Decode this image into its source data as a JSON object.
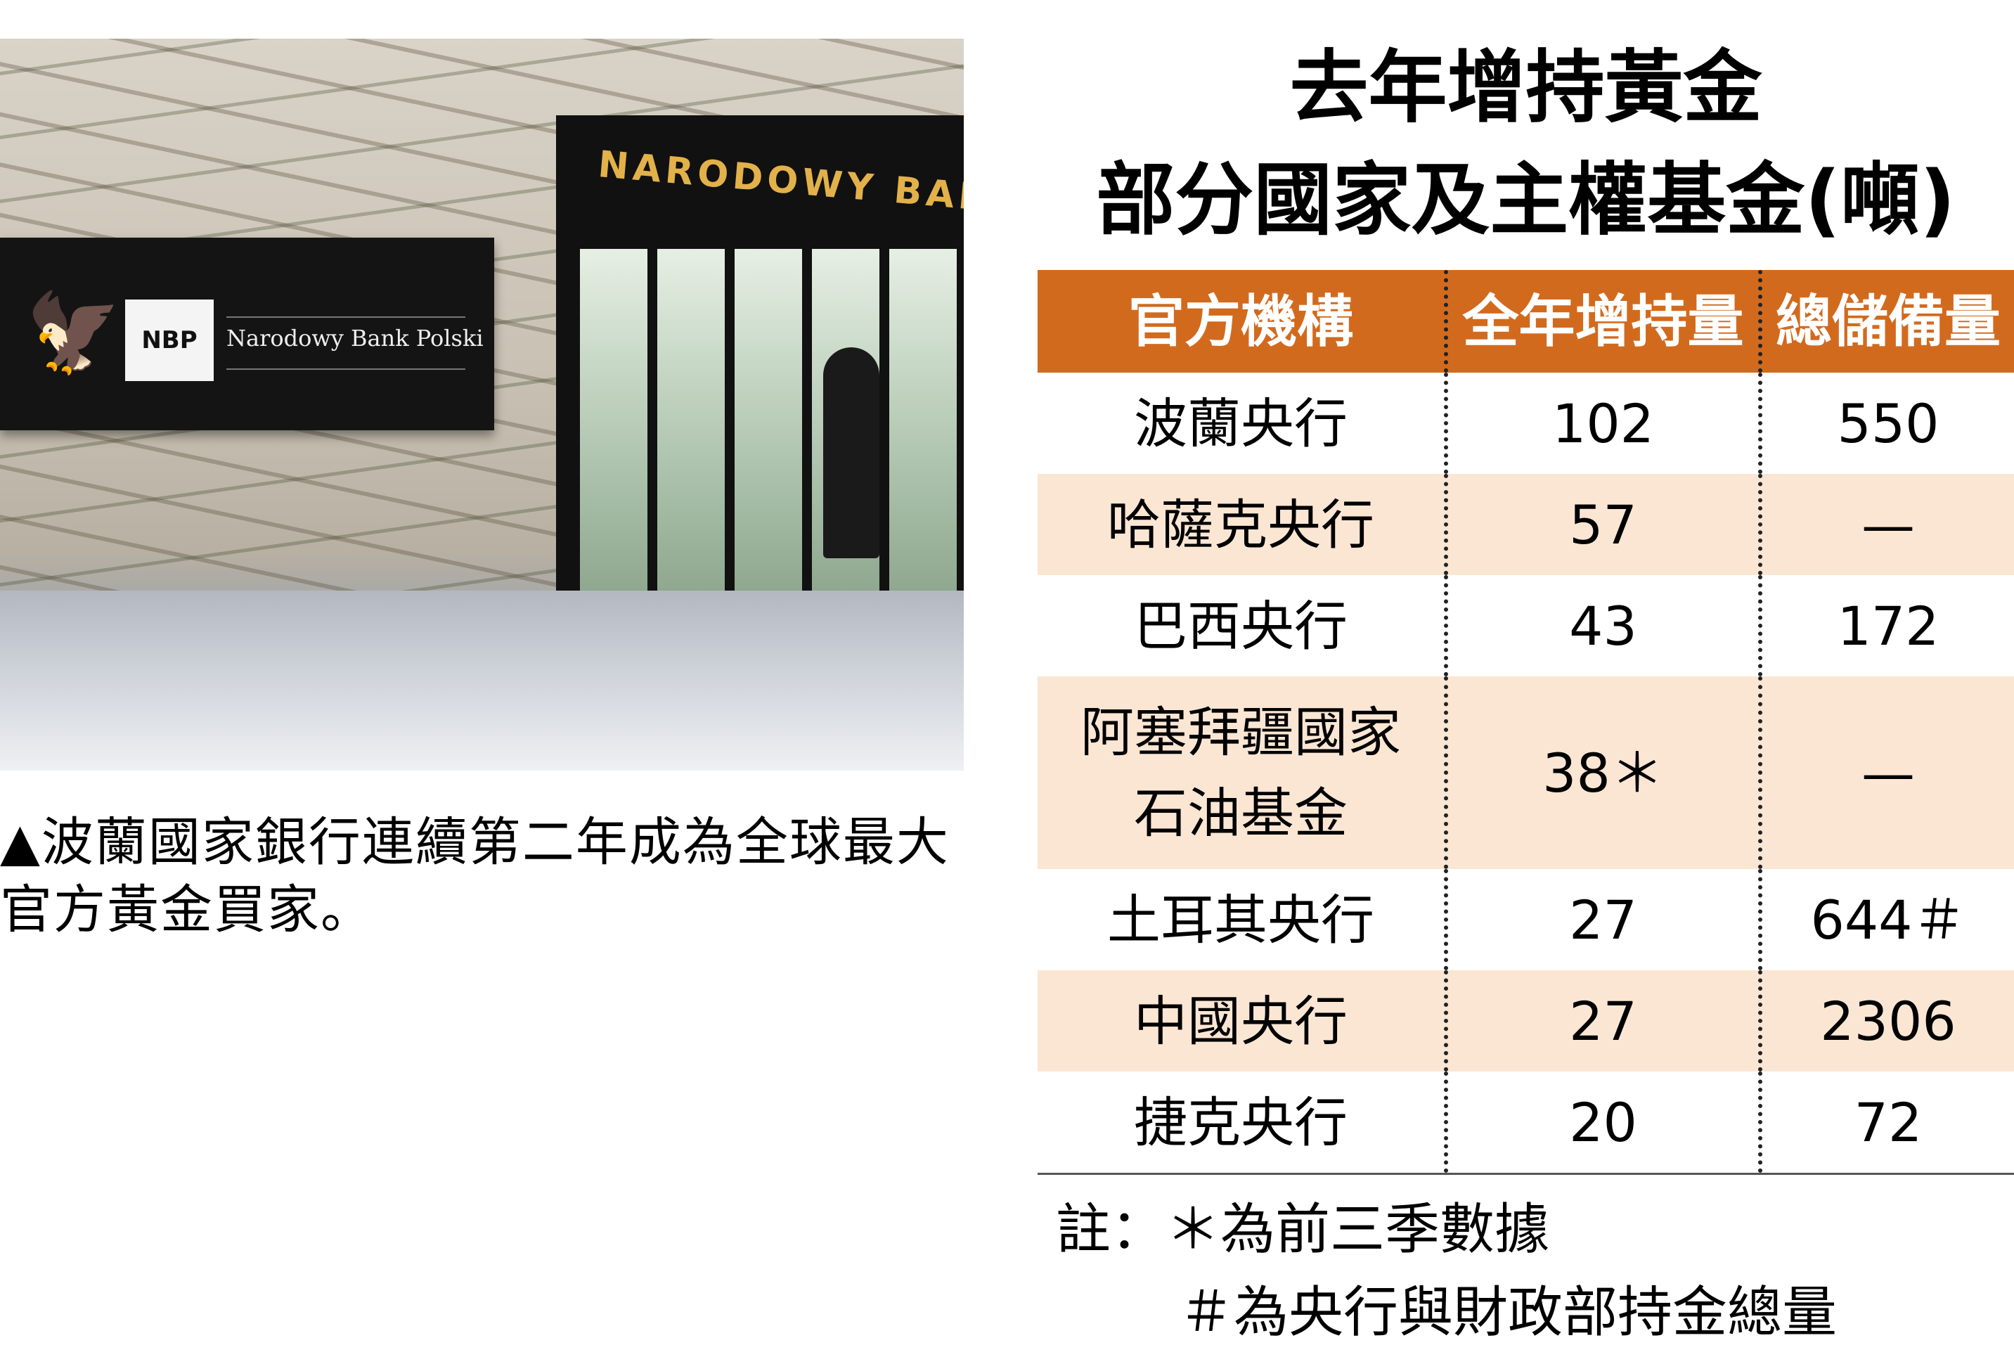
{
  "photo": {
    "sign_logo": "NBP",
    "sign_name": "Narodowy Bank Polski",
    "door_sign": "NARODOWY BANK"
  },
  "caption": "▲波蘭國家銀行連續第二年成為全球最大官方黃金買家。",
  "title": {
    "line1": "去年增持黃金",
    "line2": "部分國家及主權基金(噸)"
  },
  "colors": {
    "header": "#d26a1e",
    "stripe": "#fbe6d4"
  },
  "table": {
    "headers": [
      "官方機構",
      "全年增持量",
      "總儲備量"
    ],
    "rows": [
      [
        "波蘭央行",
        "102",
        "550"
      ],
      [
        "哈薩克央行",
        "57",
        "—"
      ],
      [
        "巴西央行",
        "43",
        "172"
      ],
      [
        "阿塞拜疆國家\n石油基金",
        "38＊",
        "—"
      ],
      [
        "土耳其央行",
        "27",
        "644＃"
      ],
      [
        "中國央行",
        "27",
        "2306"
      ],
      [
        "捷克央行",
        "20",
        "72"
      ]
    ]
  },
  "notes": [
    "註：＊為前三季數據",
    "＃為央行與財政部持金總量"
  ]
}
